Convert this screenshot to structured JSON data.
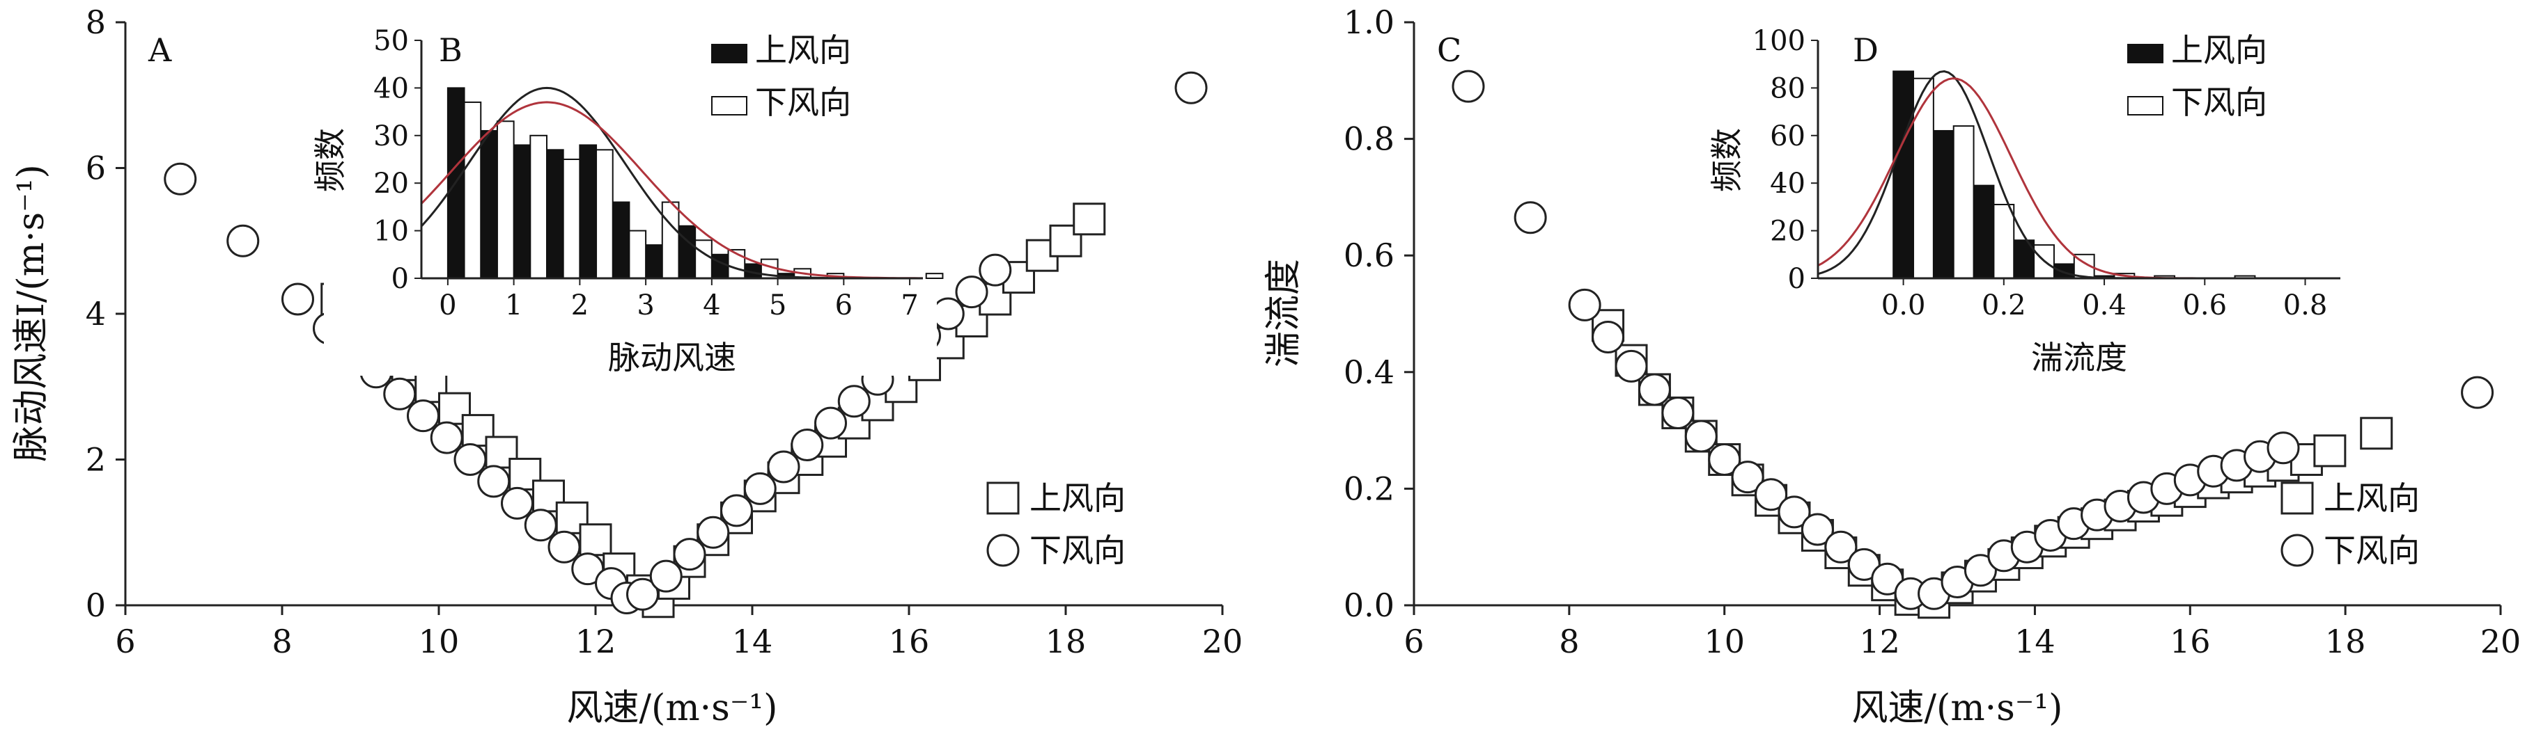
{
  "chart_data": [
    {
      "panel": "A",
      "type": "scatter",
      "xlabel": "风速/(m·s⁻¹)",
      "ylabel": "脉动风速I/(m·s⁻¹)",
      "xlim": [
        6,
        20
      ],
      "ylim": [
        0,
        8
      ],
      "xticks": [
        6,
        8,
        10,
        12,
        14,
        16,
        18,
        20
      ],
      "yticks": [
        0,
        2,
        4,
        6,
        8
      ],
      "legend_position": "bottom-right",
      "series": [
        {
          "name": "上风向",
          "marker": "square",
          "x": [
            8.7,
            9.0,
            9.3,
            9.6,
            9.9,
            10.2,
            10.5,
            10.8,
            11.1,
            11.4,
            11.7,
            12.0,
            12.3,
            12.6,
            12.8,
            13.0,
            13.2,
            13.5,
            13.8,
            14.1,
            14.4,
            14.7,
            15.0,
            15.3,
            15.6,
            15.9,
            16.2,
            16.5,
            16.8,
            17.1,
            17.4,
            17.7,
            18.0,
            18.3
          ],
          "y": [
            4.2,
            3.9,
            3.6,
            3.3,
            3.0,
            2.7,
            2.4,
            2.1,
            1.8,
            1.5,
            1.2,
            0.9,
            0.5,
            0.2,
            0.05,
            0.3,
            0.6,
            0.9,
            1.2,
            1.5,
            1.75,
            2.0,
            2.25,
            2.5,
            2.75,
            3.0,
            3.3,
            3.6,
            3.9,
            4.2,
            4.5,
            4.8,
            5.0,
            5.3
          ]
        },
        {
          "name": "下风向",
          "marker": "circle",
          "x": [
            6.7,
            7.5,
            8.2,
            8.6,
            8.9,
            9.2,
            9.5,
            9.8,
            10.1,
            10.4,
            10.7,
            11.0,
            11.3,
            11.6,
            11.9,
            12.2,
            12.4,
            12.6,
            12.9,
            13.2,
            13.5,
            13.8,
            14.1,
            14.4,
            14.7,
            15.0,
            15.3,
            15.6,
            15.9,
            16.2,
            16.5,
            16.8,
            17.1,
            19.6
          ],
          "y": [
            5.85,
            5.0,
            4.2,
            3.8,
            3.5,
            3.2,
            2.9,
            2.6,
            2.3,
            2.0,
            1.7,
            1.4,
            1.1,
            0.8,
            0.5,
            0.3,
            0.1,
            0.15,
            0.4,
            0.7,
            1.0,
            1.3,
            1.6,
            1.9,
            2.2,
            2.5,
            2.8,
            3.1,
            3.4,
            3.7,
            4.0,
            4.3,
            4.6,
            7.1
          ]
        }
      ],
      "inset": {
        "panel": "B",
        "type": "bar",
        "xlabel": "脉动风速",
        "ylabel": "频数",
        "xlim": [
          -0.4,
          7.2
        ],
        "ylim": [
          0,
          50
        ],
        "xticks": [
          0,
          1,
          2,
          3,
          4,
          5,
          6,
          7
        ],
        "yticks": [
          0,
          10,
          20,
          30,
          40,
          50
        ],
        "bin_width": 0.5,
        "bins": [
          0,
          0.5,
          1.0,
          1.5,
          2.0,
          2.5,
          3.0,
          3.5,
          4.0,
          4.5,
          5.0,
          5.5,
          6.0,
          6.5,
          7.0
        ],
        "series": [
          {
            "name": "上风向",
            "color": "#111111",
            "values": [
              40,
              31,
              28,
              27,
              28,
              16,
              7,
              11,
              5,
              3,
              1,
              0,
              0,
              0,
              0
            ]
          },
          {
            "name": "下风向",
            "color": "#ffffff",
            "values": [
              37,
              33,
              30,
              25,
              27,
              10,
              16,
              8,
              6,
              4,
              2,
              1,
              0,
              0,
              1
            ]
          }
        ],
        "fit_curves": [
          {
            "color": "#222222",
            "mean": 1.5,
            "sd": 1.18,
            "peak": 40
          },
          {
            "color": "#b0343c",
            "mean": 1.5,
            "sd": 1.45,
            "peak": 37
          }
        ]
      }
    },
    {
      "panel": "C",
      "type": "scatter",
      "xlabel": "风速/(m·s⁻¹)",
      "ylabel": "湍流度",
      "xlim": [
        6,
        20
      ],
      "ylim": [
        0.0,
        1.0
      ],
      "xticks": [
        6,
        8,
        10,
        12,
        14,
        16,
        18,
        20
      ],
      "yticks": [
        "0.0",
        "0.2",
        "0.4",
        "0.6",
        "0.8",
        "1.0"
      ],
      "legend_position": "bottom-right",
      "series": [
        {
          "name": "上风向",
          "marker": "square",
          "x": [
            8.5,
            8.8,
            9.1,
            9.4,
            9.7,
            10.0,
            10.3,
            10.6,
            10.9,
            11.2,
            11.5,
            11.8,
            12.1,
            12.4,
            12.7,
            13.0,
            13.3,
            13.6,
            13.9,
            14.2,
            14.5,
            14.8,
            15.1,
            15.4,
            15.7,
            16.0,
            16.3,
            16.6,
            16.9,
            17.2,
            17.5,
            17.8,
            18.4
          ],
          "y": [
            0.48,
            0.42,
            0.37,
            0.33,
            0.29,
            0.25,
            0.215,
            0.18,
            0.15,
            0.12,
            0.09,
            0.06,
            0.035,
            0.01,
            0.005,
            0.03,
            0.05,
            0.07,
            0.09,
            0.11,
            0.125,
            0.14,
            0.155,
            0.17,
            0.18,
            0.195,
            0.21,
            0.22,
            0.23,
            0.24,
            0.25,
            0.265,
            0.295
          ]
        },
        {
          "name": "下风向",
          "marker": "circle",
          "x": [
            6.7,
            7.5,
            8.2,
            8.5,
            8.8,
            9.1,
            9.4,
            9.7,
            10.0,
            10.3,
            10.6,
            10.9,
            11.2,
            11.5,
            11.8,
            12.1,
            12.4,
            12.7,
            13.0,
            13.3,
            13.6,
            13.9,
            14.2,
            14.5,
            14.8,
            15.1,
            15.4,
            15.7,
            16.0,
            16.3,
            16.6,
            16.9,
            17.2,
            19.7
          ],
          "y": [
            0.89,
            0.665,
            0.515,
            0.46,
            0.41,
            0.37,
            0.33,
            0.29,
            0.25,
            0.22,
            0.19,
            0.16,
            0.13,
            0.1,
            0.07,
            0.045,
            0.02,
            0.02,
            0.04,
            0.06,
            0.085,
            0.1,
            0.12,
            0.14,
            0.155,
            0.17,
            0.185,
            0.2,
            0.215,
            0.23,
            0.24,
            0.255,
            0.27,
            0.365
          ]
        }
      ],
      "inset": {
        "panel": "D",
        "type": "bar",
        "xlabel": "湍流度",
        "ylabel": "频数",
        "xlim": [
          -0.17,
          0.87
        ],
        "ylim": [
          0,
          100
        ],
        "xticks": [
          "0.0",
          "0.2",
          "0.4",
          "0.6",
          "0.8"
        ],
        "yticks": [
          0,
          20,
          40,
          60,
          80,
          100
        ],
        "bin_width": 0.08,
        "bins": [
          -0.02,
          0.06,
          0.14,
          0.22,
          0.3,
          0.38,
          0.46,
          0.54,
          0.62,
          0.7,
          0.78
        ],
        "series": [
          {
            "name": "上风向",
            "color": "#111111",
            "values": [
              87,
              62,
              39,
              16,
              6,
              1,
              0,
              0,
              0,
              0,
              0
            ]
          },
          {
            "name": "下风向",
            "color": "#ffffff",
            "values": [
              84,
              64,
              31,
              14,
              10,
              2,
              1,
              0,
              1,
              0,
              0
            ]
          }
        ],
        "fit_curves": [
          {
            "color": "#222222",
            "mean": 0.08,
            "sd": 0.09,
            "peak": 87
          },
          {
            "color": "#b0343c",
            "mean": 0.1,
            "sd": 0.115,
            "peak": 84
          }
        ]
      }
    }
  ]
}
